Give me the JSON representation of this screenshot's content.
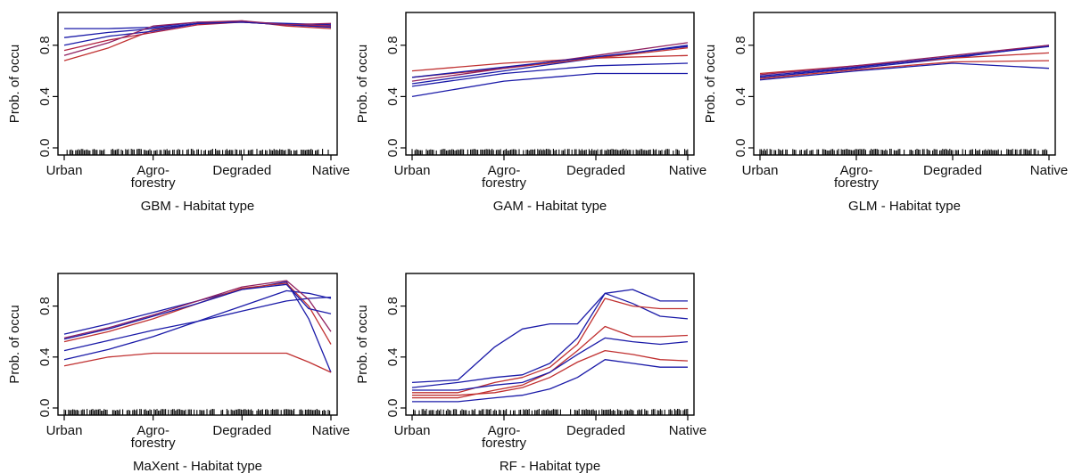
{
  "chart_data": [
    {
      "type": "line",
      "xlabel": "GBM - Habitat type",
      "ylabel": "Prob. of occu",
      "categories": [
        "Urban",
        "Agro-\nforestry",
        "Degraded",
        "Native"
      ],
      "yticks": [
        "0.0",
        "0.4",
        "0.8"
      ],
      "ylim": [
        0,
        1
      ],
      "x": [
        0,
        0.5,
        1,
        1.5,
        2,
        2.5,
        3
      ],
      "series": [
        {
          "color": "#1a1aa8",
          "values": [
            0.93,
            0.93,
            0.94,
            0.98,
            0.98,
            0.97,
            0.96
          ]
        },
        {
          "color": "#c03030",
          "values": [
            0.68,
            0.78,
            0.92,
            0.97,
            0.99,
            0.95,
            0.93
          ]
        },
        {
          "color": "#1a1aa8",
          "values": [
            0.86,
            0.9,
            0.93,
            0.97,
            0.98,
            0.96,
            0.95
          ]
        },
        {
          "color": "#b02040",
          "values": [
            0.76,
            0.84,
            0.9,
            0.96,
            0.98,
            0.96,
            0.95
          ]
        },
        {
          "color": "#1a1aa8",
          "values": [
            0.8,
            0.87,
            0.91,
            0.97,
            0.98,
            0.96,
            0.94
          ]
        },
        {
          "color": "#902060",
          "values": [
            0.72,
            0.82,
            0.95,
            0.98,
            0.99,
            0.96,
            0.97
          ]
        }
      ]
    },
    {
      "type": "line",
      "xlabel": "GAM - Habitat type",
      "ylabel": "Prob. of occu",
      "categories": [
        "Urban",
        "Agro-\nforestry",
        "Degraded",
        "Native"
      ],
      "yticks": [
        "0.0",
        "0.4",
        "0.8"
      ],
      "ylim": [
        0,
        1
      ],
      "x": [
        0,
        1,
        2,
        3
      ],
      "series": [
        {
          "color": "#1a1aa8",
          "values": [
            0.4,
            0.52,
            0.58,
            0.58
          ]
        },
        {
          "color": "#c03030",
          "values": [
            0.6,
            0.66,
            0.7,
            0.72
          ]
        },
        {
          "color": "#1a1aa8",
          "values": [
            0.5,
            0.6,
            0.7,
            0.8
          ]
        },
        {
          "color": "#c03030",
          "values": [
            0.55,
            0.62,
            0.7,
            0.78
          ]
        },
        {
          "color": "#1a1aa8",
          "values": [
            0.48,
            0.58,
            0.64,
            0.66
          ]
        },
        {
          "color": "#902060",
          "values": [
            0.52,
            0.62,
            0.72,
            0.82
          ]
        },
        {
          "color": "#1a1aa8",
          "values": [
            0.55,
            0.63,
            0.71,
            0.79
          ]
        }
      ]
    },
    {
      "type": "line",
      "xlabel": "GLM -  Habitat type",
      "ylabel": "Prob. of occu",
      "categories": [
        "Urban",
        "Agro-\nforestry",
        "Degraded",
        "Native"
      ],
      "yticks": [
        "0.0",
        "0.4",
        "0.8"
      ],
      "ylim": [
        0,
        1
      ],
      "x": [
        0,
        1,
        2,
        3
      ],
      "series": [
        {
          "color": "#1a1aa8",
          "values": [
            0.55,
            0.62,
            0.7,
            0.8
          ]
        },
        {
          "color": "#c03030",
          "values": [
            0.58,
            0.64,
            0.7,
            0.74
          ]
        },
        {
          "color": "#1a1aa8",
          "values": [
            0.53,
            0.6,
            0.66,
            0.62
          ]
        },
        {
          "color": "#902060",
          "values": [
            0.57,
            0.64,
            0.72,
            0.8
          ]
        },
        {
          "color": "#1a1aa8",
          "values": [
            0.56,
            0.63,
            0.71,
            0.79
          ]
        },
        {
          "color": "#c03030",
          "values": [
            0.54,
            0.61,
            0.67,
            0.68
          ]
        }
      ]
    },
    {
      "type": "line",
      "xlabel": "MaXent - Habitat type",
      "ylabel": "Prob. of occu",
      "categories": [
        "Urban",
        "Agro-\nforestry",
        "Degraded",
        "Native"
      ],
      "yticks": [
        "0.0",
        "0.4",
        "0.8"
      ],
      "ylim": [
        0,
        1
      ],
      "x": [
        0,
        0.5,
        1,
        1.5,
        2,
        2.5,
        2.75,
        3
      ],
      "series": [
        {
          "color": "#1a1aa8",
          "values": [
            0.58,
            0.66,
            0.75,
            0.84,
            0.93,
            0.99,
            0.7,
            0.28
          ]
        },
        {
          "color": "#c03030",
          "values": [
            0.52,
            0.6,
            0.7,
            0.82,
            0.94,
            0.98,
            0.8,
            0.5
          ]
        },
        {
          "color": "#1a1aa8",
          "values": [
            0.38,
            0.46,
            0.56,
            0.68,
            0.8,
            0.92,
            0.9,
            0.86
          ]
        },
        {
          "color": "#c03030",
          "values": [
            0.33,
            0.4,
            0.43,
            0.43,
            0.43,
            0.43,
            0.36,
            0.28
          ]
        },
        {
          "color": "#1a1aa8",
          "values": [
            0.45,
            0.53,
            0.61,
            0.68,
            0.76,
            0.84,
            0.86,
            0.87
          ]
        },
        {
          "color": "#902060",
          "values": [
            0.55,
            0.63,
            0.73,
            0.84,
            0.95,
            1.0,
            0.85,
            0.6
          ]
        },
        {
          "color": "#1a1aa8",
          "values": [
            0.54,
            0.62,
            0.72,
            0.82,
            0.93,
            0.97,
            0.78,
            0.74
          ]
        }
      ]
    },
    {
      "type": "line",
      "xlabel": "RF - Habitat type",
      "ylabel": "Prob. of occu",
      "categories": [
        "Urban",
        "Agro-\nforestry",
        "Degraded",
        "Native"
      ],
      "yticks": [
        "0.0",
        "0.4",
        "0.8"
      ],
      "ylim": [
        0,
        1
      ],
      "x": [
        0,
        0.5,
        0.9,
        1.2,
        1.5,
        1.8,
        2.1,
        2.4,
        2.7,
        3
      ],
      "series": [
        {
          "color": "#1a1aa8",
          "values": [
            0.2,
            0.22,
            0.48,
            0.62,
            0.66,
            0.66,
            0.9,
            0.93,
            0.84,
            0.84
          ]
        },
        {
          "color": "#1a1aa8",
          "values": [
            0.16,
            0.2,
            0.24,
            0.26,
            0.35,
            0.55,
            0.9,
            0.82,
            0.72,
            0.7
          ]
        },
        {
          "color": "#c03030",
          "values": [
            0.12,
            0.12,
            0.2,
            0.24,
            0.32,
            0.5,
            0.86,
            0.8,
            0.78,
            0.78
          ]
        },
        {
          "color": "#c03030",
          "values": [
            0.08,
            0.08,
            0.14,
            0.18,
            0.28,
            0.45,
            0.64,
            0.56,
            0.56,
            0.57
          ]
        },
        {
          "color": "#1a1aa8",
          "values": [
            0.14,
            0.14,
            0.18,
            0.2,
            0.28,
            0.42,
            0.55,
            0.52,
            0.5,
            0.52
          ]
        },
        {
          "color": "#1a1aa8",
          "values": [
            0.05,
            0.05,
            0.08,
            0.1,
            0.15,
            0.24,
            0.38,
            0.35,
            0.32,
            0.32
          ]
        },
        {
          "color": "#c03030",
          "values": [
            0.1,
            0.1,
            0.12,
            0.16,
            0.24,
            0.36,
            0.45,
            0.42,
            0.38,
            0.37
          ]
        }
      ]
    }
  ]
}
